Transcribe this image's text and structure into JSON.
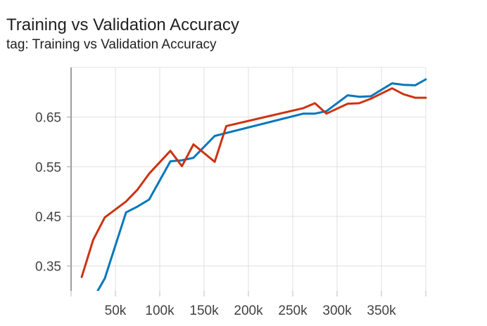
{
  "title": "Training vs Validation Accuracy",
  "subtitle": "tag: Training vs Validation Accuracy",
  "chart_data": {
    "type": "line",
    "title": "Training vs Validation Accuracy",
    "subtitle": "tag: Training vs Validation Accuracy",
    "xlabel": "",
    "ylabel": "",
    "xlim": [
      0,
      400000
    ],
    "ylim": [
      0.3,
      0.75
    ],
    "grid": true,
    "x_ticks": [
      {
        "value": 50000,
        "label": "50k"
      },
      {
        "value": 100000,
        "label": "100k"
      },
      {
        "value": 150000,
        "label": "150k"
      },
      {
        "value": 200000,
        "label": "200k"
      },
      {
        "value": 250000,
        "label": "250k"
      },
      {
        "value": 300000,
        "label": "300k"
      },
      {
        "value": 350000,
        "label": "350k"
      }
    ],
    "y_ticks": [
      {
        "value": 0.35,
        "label": "0.35"
      },
      {
        "value": 0.45,
        "label": "0.45"
      },
      {
        "value": 0.55,
        "label": "0.55"
      },
      {
        "value": 0.65,
        "label": "0.65"
      }
    ],
    "series": [
      {
        "color": "#0077bb",
        "points": [
          [
            30000,
            0.3
          ],
          [
            38000,
            0.325
          ],
          [
            62000,
            0.458
          ],
          [
            75000,
            0.47
          ],
          [
            88000,
            0.484
          ],
          [
            112000,
            0.561
          ],
          [
            125000,
            0.563
          ],
          [
            138000,
            0.568
          ],
          [
            162000,
            0.612
          ],
          [
            175000,
            0.618
          ],
          [
            262000,
            0.657
          ],
          [
            275000,
            0.657
          ],
          [
            288000,
            0.662
          ],
          [
            312000,
            0.694
          ],
          [
            325000,
            0.691
          ],
          [
            338000,
            0.692
          ],
          [
            362000,
            0.718
          ],
          [
            375000,
            0.715
          ],
          [
            388000,
            0.714
          ],
          [
            400000,
            0.726
          ]
        ]
      },
      {
        "color": "#cc3311",
        "points": [
          [
            12000,
            0.328
          ],
          [
            25000,
            0.403
          ],
          [
            38000,
            0.448
          ],
          [
            62000,
            0.48
          ],
          [
            75000,
            0.504
          ],
          [
            88000,
            0.536
          ],
          [
            112000,
            0.582
          ],
          [
            125000,
            0.551
          ],
          [
            138000,
            0.595
          ],
          [
            162000,
            0.56
          ],
          [
            175000,
            0.632
          ],
          [
            262000,
            0.668
          ],
          [
            275000,
            0.678
          ],
          [
            288000,
            0.657
          ],
          [
            312000,
            0.677
          ],
          [
            325000,
            0.678
          ],
          [
            338000,
            0.687
          ],
          [
            362000,
            0.708
          ],
          [
            375000,
            0.696
          ],
          [
            388000,
            0.689
          ],
          [
            400000,
            0.689
          ]
        ]
      }
    ]
  }
}
